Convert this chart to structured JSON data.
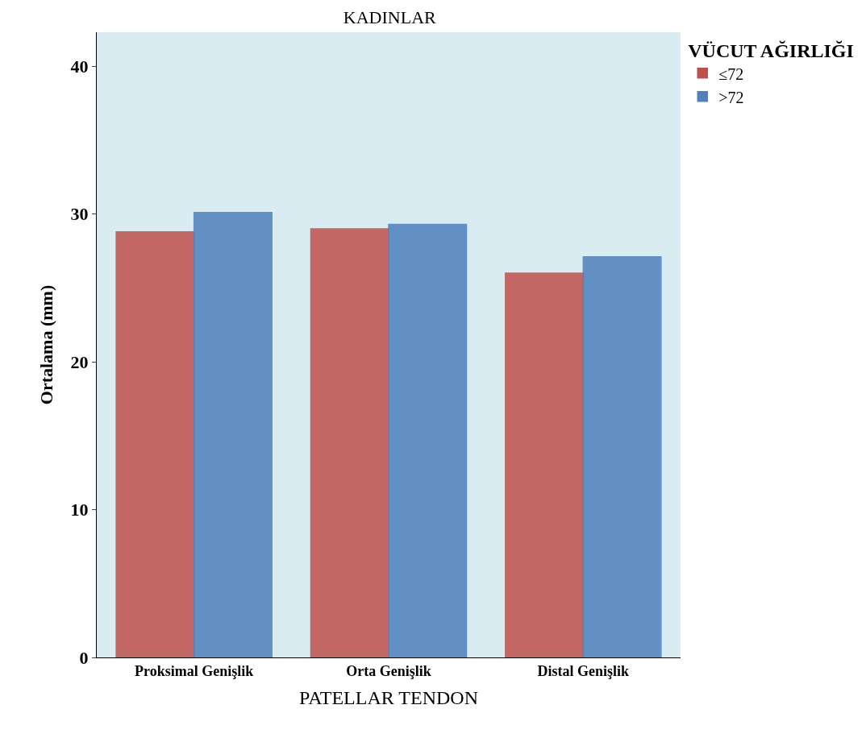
{
  "chart_data": {
    "type": "bar",
    "title": "KADINLAR",
    "xlabel": "PATELLAR TENDON",
    "ylabel": "Ortalama (mm)",
    "legend_title": "VÜCUT AĞIRLIĞI",
    "categories": [
      "Proksimal Genişlik",
      "Orta Genişlik",
      "Distal Genişlik"
    ],
    "series": [
      {
        "name": "≤72",
        "color": "#c0504d",
        "values": [
          28.8,
          29.0,
          26.0
        ]
      },
      {
        "name": ">72",
        "color": "#4f81bd",
        "values": [
          30.1,
          29.3,
          27.1
        ]
      }
    ],
    "ylim": [
      0,
      42.3
    ],
    "yticks": [
      0,
      10,
      20,
      30,
      40
    ],
    "grid": false,
    "legend": "top right"
  }
}
